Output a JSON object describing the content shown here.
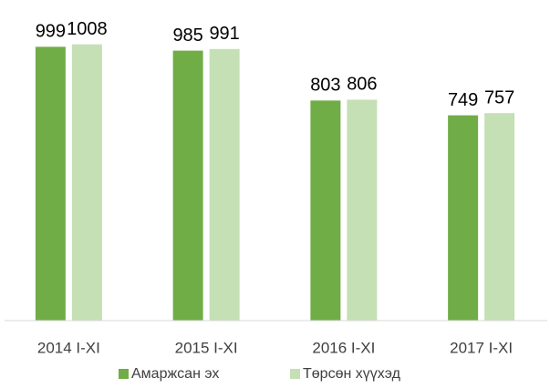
{
  "chart_data": {
    "type": "bar",
    "categories": [
      "2014 I-XI",
      "2015 I-XI",
      "2016 I-XI",
      "2017 I-XI"
    ],
    "series": [
      {
        "name": "Амаржсан эх",
        "color": "#70ad47",
        "values": [
          999,
          985,
          803,
          749
        ]
      },
      {
        "name": "Төрсөн хүүхэд",
        "color": "#c5e0b4",
        "values": [
          1008,
          991,
          806,
          757
        ]
      }
    ],
    "ylim": [
      0,
      1100
    ],
    "legend": "bottom"
  }
}
